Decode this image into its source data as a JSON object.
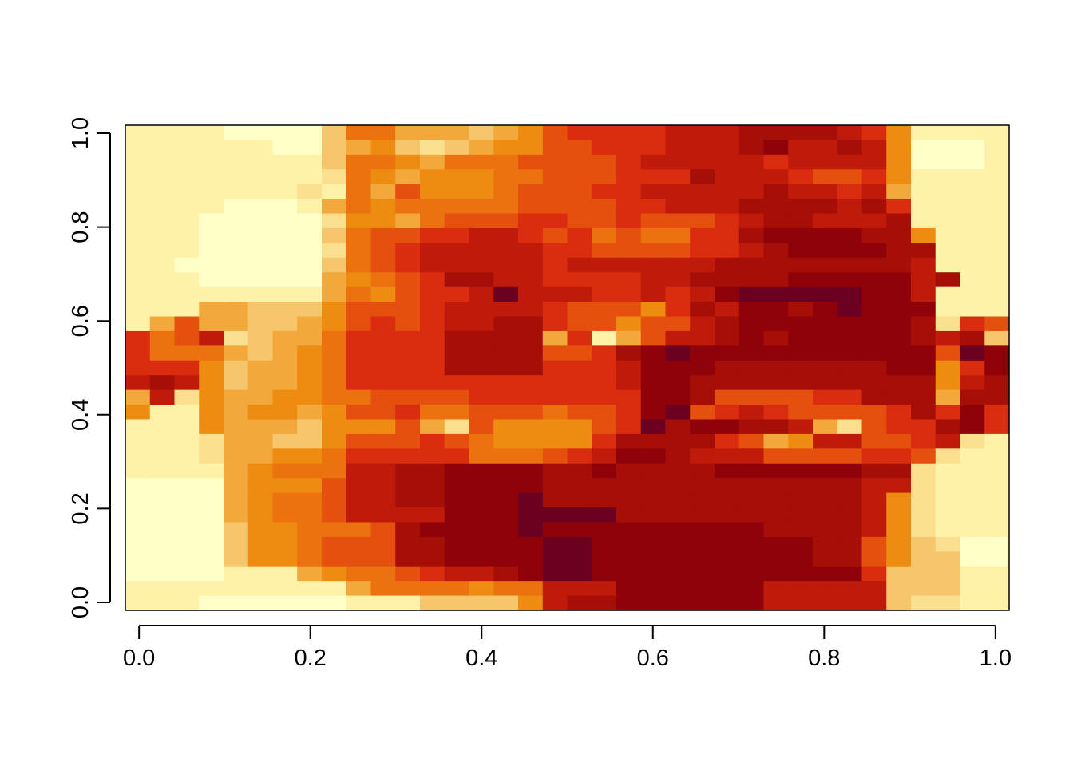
{
  "chart_data": {
    "type": "heatmap",
    "title": "",
    "xlabel": "",
    "ylabel": "",
    "xlim": [
      -0.016,
      1.016
    ],
    "ylim": [
      -0.017,
      1.017
    ],
    "x_ticks": [
      0.0,
      0.2,
      0.4,
      0.6,
      0.8,
      1.0
    ],
    "y_ticks": [
      0.0,
      0.2,
      0.4,
      0.6,
      0.8,
      1.0
    ],
    "x_tick_labels": [
      "0.0",
      "0.2",
      "0.4",
      "0.6",
      "0.8",
      "1.0"
    ],
    "y_tick_labels": [
      "0.0",
      "0.2",
      "0.4",
      "0.6",
      "0.8",
      "1.0"
    ],
    "grid": false,
    "legend": "none",
    "color_scale": [
      "#FFFFC8",
      "#FEF1A8",
      "#FAE08E",
      "#F6C66C",
      "#F2A83A",
      "#EE8C12",
      "#EB720E",
      "#E5500E",
      "#DA2C0E",
      "#C01A0A",
      "#A50F07",
      "#90020A",
      "#6B0020"
    ],
    "levels_note": "",
    "grid_values": [
      [
        1,
        1,
        1,
        1,
        0,
        0,
        0,
        0,
        3,
        6,
        6,
        4,
        4,
        4,
        3,
        4,
        5,
        7,
        8,
        8,
        8,
        8,
        9,
        9,
        9,
        10,
        10,
        10,
        10,
        9,
        8,
        5,
        1,
        1,
        1,
        1
      ],
      [
        1,
        1,
        1,
        1,
        1,
        1,
        0,
        0,
        3,
        4,
        5,
        3,
        2,
        3,
        4,
        5,
        5,
        7,
        7,
        8,
        8,
        8,
        9,
        9,
        9,
        10,
        11,
        9,
        9,
        10,
        9,
        5,
        0,
        0,
        0,
        1
      ],
      [
        1,
        1,
        1,
        1,
        1,
        1,
        1,
        1,
        3,
        6,
        6,
        5,
        4,
        6,
        6,
        6,
        7,
        7,
        7,
        7,
        8,
        9,
        9,
        9,
        9,
        9,
        8,
        9,
        9,
        9,
        9,
        5,
        0,
        0,
        0,
        1
      ],
      [
        1,
        1,
        1,
        1,
        1,
        1,
        1,
        1,
        2,
        6,
        5,
        4,
        5,
        5,
        5,
        6,
        6,
        7,
        7,
        7,
        8,
        8,
        8,
        10,
        9,
        9,
        9,
        8,
        7,
        7,
        8,
        5,
        1,
        1,
        1,
        1
      ],
      [
        1,
        1,
        1,
        1,
        1,
        1,
        1,
        2,
        1,
        6,
        4,
        7,
        5,
        5,
        5,
        6,
        7,
        7,
        7,
        8,
        8,
        9,
        9,
        9,
        9,
        9,
        10,
        9,
        9,
        8,
        9,
        4,
        1,
        1,
        1,
        1
      ],
      [
        1,
        1,
        1,
        1,
        0,
        0,
        0,
        1,
        4,
        6,
        5,
        6,
        6,
        6,
        6,
        6,
        7,
        7,
        7,
        7,
        8,
        8,
        9,
        9,
        9,
        10,
        10,
        10,
        10,
        9,
        10,
        8,
        1,
        1,
        1,
        1
      ],
      [
        1,
        1,
        1,
        0,
        0,
        0,
        0,
        0,
        2,
        5,
        5,
        4,
        6,
        7,
        7,
        7,
        8,
        8,
        7,
        7,
        8,
        7,
        7,
        7,
        8,
        9,
        10,
        10,
        9,
        9,
        9,
        10,
        1,
        1,
        1,
        1
      ],
      [
        1,
        1,
        1,
        0,
        0,
        0,
        0,
        0,
        3,
        6,
        7,
        7,
        8,
        8,
        9,
        9,
        8,
        7,
        8,
        6,
        7,
        6,
        6,
        8,
        8,
        10,
        11,
        11,
        11,
        11,
        10,
        10,
        5,
        1,
        1,
        1
      ],
      [
        1,
        1,
        1,
        0,
        0,
        0,
        0,
        0,
        2,
        6,
        7,
        8,
        9,
        9,
        9,
        9,
        9,
        8,
        8,
        7,
        7,
        7,
        7,
        8,
        8,
        9,
        10,
        11,
        11,
        11,
        11,
        10,
        10,
        1,
        1,
        1
      ],
      [
        1,
        1,
        0,
        0,
        0,
        0,
        0,
        0,
        3,
        6,
        7,
        8,
        9,
        9,
        9,
        9,
        9,
        8,
        9,
        9,
        9,
        9,
        9,
        9,
        10,
        10,
        10,
        10,
        10,
        10,
        10,
        10,
        9,
        1,
        1,
        1
      ],
      [
        1,
        1,
        1,
        0,
        0,
        0,
        0,
        0,
        4,
        5,
        6,
        7,
        8,
        10,
        10,
        9,
        9,
        8,
        8,
        8,
        8,
        9,
        9,
        10,
        10,
        10,
        10,
        11,
        11,
        11,
        11,
        11,
        9,
        10,
        1,
        1
      ],
      [
        1,
        1,
        1,
        1,
        1,
        1,
        1,
        1,
        4,
        6,
        5,
        7,
        8,
        8,
        9,
        12,
        9,
        9,
        9,
        8,
        8,
        9,
        8,
        9,
        11,
        12,
        12,
        12,
        12,
        12,
        11,
        11,
        9,
        1,
        1,
        1
      ],
      [
        1,
        1,
        1,
        4,
        4,
        3,
        3,
        3,
        5,
        7,
        7,
        7,
        8,
        9,
        9,
        9,
        9,
        8,
        7,
        7,
        7,
        5,
        8,
        10,
        9,
        11,
        11,
        10,
        11,
        12,
        11,
        11,
        11,
        1,
        1,
        1
      ],
      [
        1,
        4,
        7,
        4,
        4,
        3,
        3,
        4,
        5,
        7,
        8,
        7,
        8,
        9,
        9,
        10,
        10,
        8,
        7,
        7,
        5,
        7,
        7,
        9,
        10,
        11,
        11,
        11,
        11,
        11,
        11,
        11,
        10,
        2,
        8,
        7
      ],
      [
        8,
        6,
        7,
        9,
        2,
        3,
        4,
        4,
        6,
        8,
        8,
        8,
        8,
        10,
        10,
        10,
        10,
        4,
        8,
        1,
        4,
        7,
        9,
        9,
        10,
        11,
        10,
        11,
        11,
        11,
        11,
        11,
        10,
        9,
        10,
        3
      ],
      [
        8,
        6,
        6,
        6,
        4,
        3,
        4,
        5,
        6,
        8,
        8,
        8,
        8,
        10,
        10,
        10,
        10,
        7,
        7,
        8,
        10,
        11,
        12,
        11,
        11,
        11,
        11,
        11,
        11,
        11,
        11,
        11,
        11,
        7,
        12,
        11
      ],
      [
        8,
        8,
        8,
        5,
        3,
        4,
        4,
        5,
        6,
        8,
        8,
        8,
        8,
        10,
        10,
        10,
        10,
        8,
        8,
        8,
        9,
        11,
        11,
        11,
        10,
        10,
        10,
        10,
        10,
        10,
        10,
        11,
        11,
        5,
        8,
        11
      ],
      [
        9,
        10,
        9,
        5,
        3,
        4,
        4,
        5,
        6,
        8,
        8,
        8,
        8,
        8,
        8,
        8,
        8,
        8,
        8,
        8,
        9,
        11,
        11,
        10,
        10,
        10,
        10,
        10,
        10,
        10,
        10,
        10,
        10,
        5,
        9,
        10
      ],
      [
        4,
        9,
        2,
        5,
        4,
        4,
        5,
        5,
        6,
        6,
        7,
        7,
        7,
        7,
        8,
        8,
        8,
        8,
        8,
        8,
        8,
        11,
        11,
        10,
        7,
        7,
        7,
        7,
        8,
        8,
        10,
        10,
        10,
        4,
        10,
        10
      ],
      [
        5,
        1,
        1,
        5,
        4,
        5,
        5,
        4,
        5,
        7,
        7,
        8,
        6,
        6,
        7,
        7,
        7,
        6,
        7,
        7,
        8,
        11,
        12,
        7,
        8,
        9,
        8,
        7,
        7,
        7,
        7,
        8,
        10,
        8,
        11,
        8
      ],
      [
        1,
        1,
        1,
        5,
        4,
        4,
        4,
        3,
        5,
        5,
        5,
        7,
        4,
        2,
        7,
        5,
        5,
        5,
        5,
        7,
        8,
        12,
        10,
        11,
        11,
        10,
        10,
        9,
        4,
        2,
        7,
        8,
        8,
        10,
        11,
        8
      ],
      [
        1,
        1,
        1,
        2,
        4,
        4,
        3,
        3,
        5,
        7,
        7,
        7,
        8,
        7,
        6,
        5,
        5,
        5,
        5,
        8,
        10,
        10,
        10,
        10,
        8,
        7,
        4,
        5,
        9,
        9,
        7,
        7,
        8,
        9,
        2,
        1
      ],
      [
        1,
        1,
        1,
        2,
        4,
        4,
        5,
        5,
        6,
        8,
        8,
        8,
        8,
        8,
        6,
        6,
        6,
        7,
        8,
        9,
        11,
        11,
        10,
        9,
        9,
        9,
        7,
        7,
        7,
        7,
        8,
        8,
        7,
        2,
        1,
        1
      ],
      [
        1,
        1,
        1,
        1,
        4,
        5,
        6,
        6,
        6,
        9,
        9,
        10,
        10,
        11,
        11,
        11,
        11,
        10,
        10,
        11,
        10,
        10,
        10,
        10,
        11,
        11,
        11,
        11,
        11,
        11,
        10,
        10,
        2,
        1,
        1,
        1
      ],
      [
        0,
        0,
        0,
        0,
        4,
        5,
        5,
        5,
        7,
        9,
        9,
        10,
        10,
        11,
        11,
        11,
        11,
        10,
        10,
        10,
        10,
        10,
        10,
        10,
        10,
        10,
        10,
        10,
        10,
        10,
        9,
        9,
        2,
        1,
        1,
        1
      ],
      [
        0,
        0,
        0,
        0,
        4,
        5,
        6,
        6,
        7,
        9,
        9,
        10,
        10,
        11,
        11,
        11,
        12,
        10,
        10,
        10,
        10,
        10,
        10,
        10,
        10,
        10,
        10,
        10,
        10,
        10,
        9,
        5,
        2,
        1,
        1,
        1
      ],
      [
        0,
        0,
        0,
        0,
        4,
        5,
        6,
        6,
        7,
        9,
        9,
        9,
        9,
        11,
        11,
        11,
        12,
        12,
        12,
        12,
        10,
        10,
        10,
        10,
        10,
        10,
        10,
        10,
        10,
        10,
        9,
        5,
        2,
        1,
        1,
        1
      ],
      [
        0,
        0,
        0,
        0,
        3,
        5,
        5,
        6,
        6,
        6,
        7,
        10,
        11,
        11,
        11,
        11,
        12,
        11,
        11,
        11,
        11,
        11,
        11,
        11,
        11,
        11,
        10,
        10,
        10,
        10,
        9,
        5,
        2,
        1,
        1,
        1
      ],
      [
        0,
        0,
        0,
        0,
        3,
        5,
        5,
        6,
        7,
        7,
        7,
        10,
        10,
        11,
        11,
        11,
        11,
        12,
        12,
        11,
        11,
        11,
        11,
        11,
        11,
        11,
        11,
        11,
        10,
        10,
        7,
        5,
        3,
        2,
        0,
        0
      ],
      [
        0,
        0,
        0,
        0,
        3,
        5,
        5,
        6,
        7,
        7,
        7,
        10,
        10,
        11,
        11,
        11,
        11,
        12,
        12,
        11,
        11,
        11,
        11,
        11,
        11,
        11,
        11,
        11,
        10,
        10,
        7,
        5,
        3,
        3,
        0,
        0
      ],
      [
        0,
        0,
        0,
        0,
        1,
        1,
        1,
        4,
        5,
        6,
        6,
        7,
        8,
        9,
        9,
        10,
        11,
        12,
        12,
        11,
        11,
        11,
        11,
        11,
        11,
        11,
        11,
        11,
        11,
        11,
        8,
        3,
        3,
        3,
        1,
        1
      ],
      [
        1,
        1,
        1,
        1,
        1,
        1,
        1,
        1,
        1,
        4,
        6,
        6,
        6,
        6,
        5,
        6,
        6,
        9,
        9,
        9,
        11,
        11,
        11,
        11,
        11,
        11,
        9,
        9,
        9,
        9,
        9,
        3,
        3,
        3,
        1,
        1
      ],
      [
        1,
        1,
        1,
        0,
        0,
        0,
        0,
        0,
        0,
        1,
        1,
        1,
        3,
        3,
        3,
        3,
        5,
        9,
        10,
        10,
        11,
        11,
        11,
        11,
        11,
        11,
        9,
        9,
        9,
        9,
        9,
        3,
        2,
        2,
        1,
        1
      ]
    ]
  }
}
